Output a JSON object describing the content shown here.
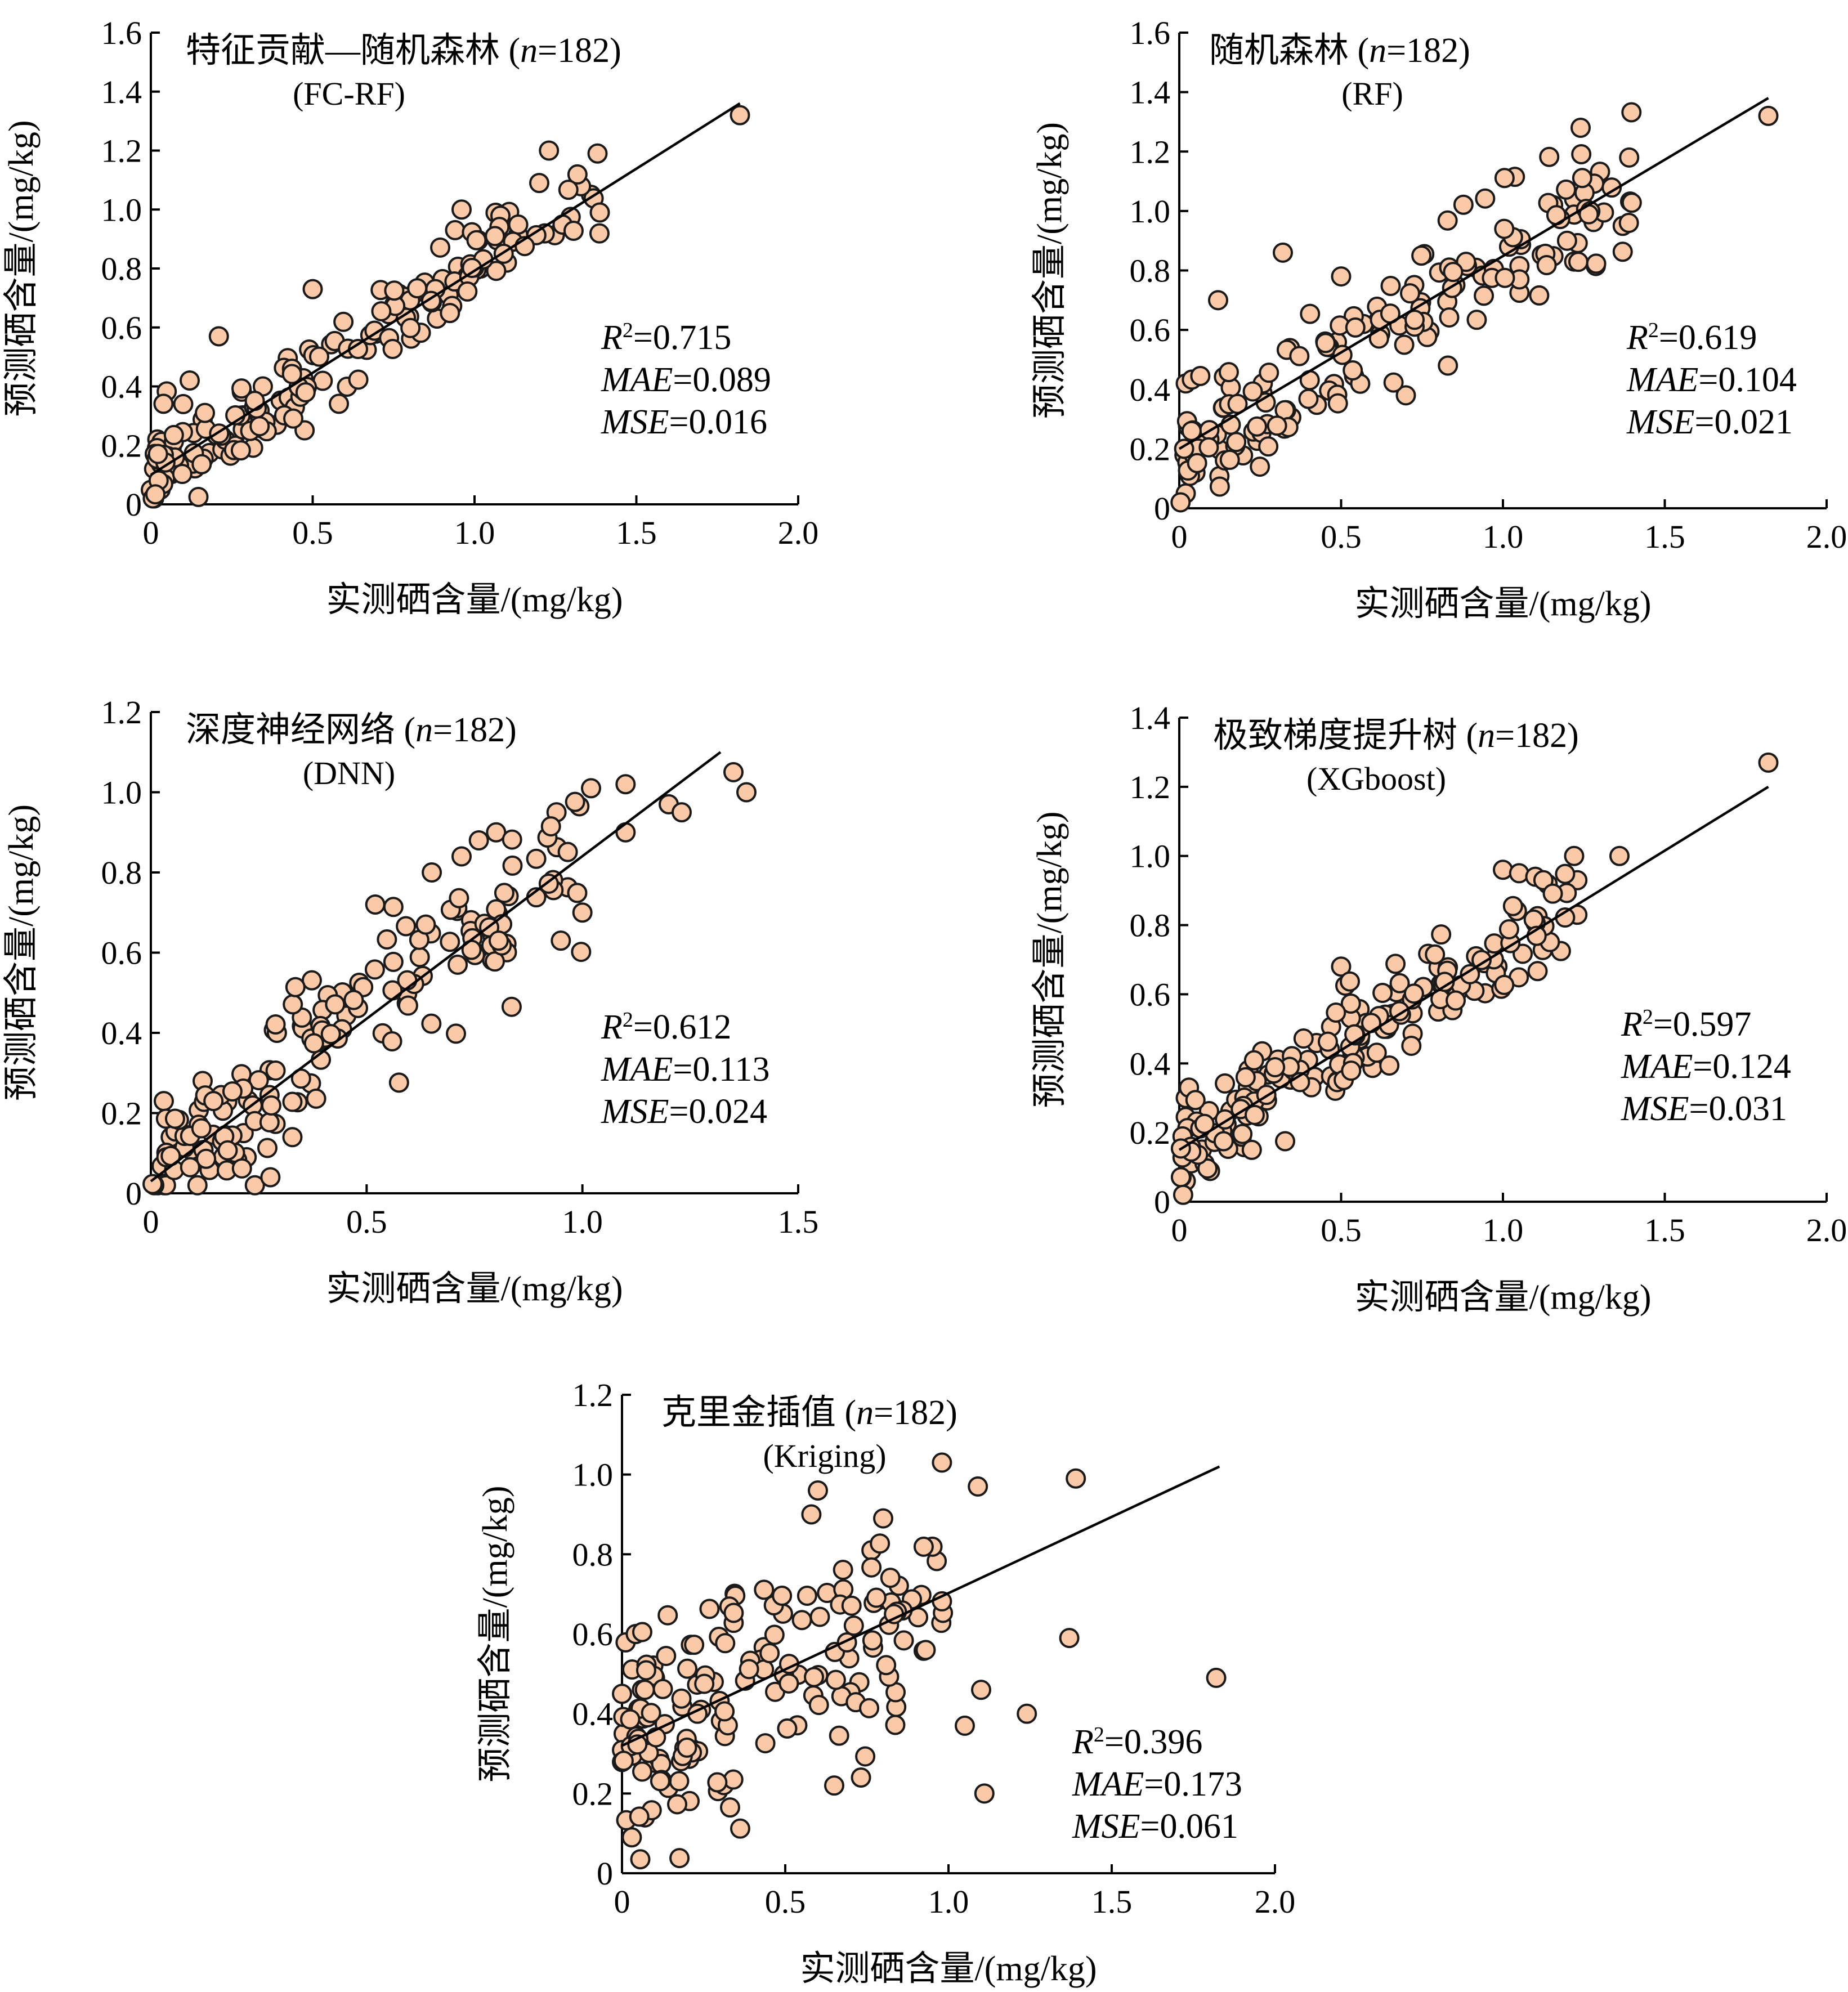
{
  "figure": {
    "marker_fill": "#F9C9A8",
    "marker_stroke": "#1a1a1a"
  },
  "chart_data": [
    {
      "type": "scatter",
      "title": "特征贡献—随机森林",
      "n_label": "n",
      "n_value": "=182)",
      "subtitle": "(FC-RF)",
      "xlabel": "实测硒含量/(mg/kg)",
      "ylabel": "预测硒含量/(mg/kg)",
      "xlim": [
        0,
        2.0
      ],
      "ylim": [
        0,
        1.6
      ],
      "xticks": [
        "0",
        "0.5",
        "1.0",
        "1.5",
        "2.0"
      ],
      "yticks": [
        "0",
        "0.2",
        "0.4",
        "0.6",
        "0.8",
        "1.0",
        "1.2",
        "1.4",
        "1.6"
      ],
      "stats": {
        "r2_label": "R",
        "r2_value": "=0.715",
        "mae_label": "MAE",
        "mae_value": "=0.089",
        "mse_label": "MSE",
        "mse_value": "=0.016"
      },
      "fit_line": {
        "x": [
          0,
          1.82
        ],
        "y": [
          0.1,
          1.36
        ]
      },
      "anchor_points": [
        [
          0.02,
          0.22
        ],
        [
          0.01,
          0.12
        ],
        [
          0.03,
          0.05
        ],
        [
          0.1,
          0.34
        ],
        [
          0.12,
          0.42
        ],
        [
          0.21,
          0.57
        ],
        [
          0.5,
          0.73
        ],
        [
          0.94,
          0.93
        ],
        [
          0.96,
          1.0
        ],
        [
          1.2,
          1.09
        ],
        [
          1.23,
          1.2
        ],
        [
          1.38,
          1.19
        ],
        [
          1.36,
          1.05
        ],
        [
          1.82,
          1.32
        ],
        [
          1.1,
          0.82
        ],
        [
          0.92,
          0.71
        ]
      ],
      "points": {
        "count": 182,
        "x_range": [
          0,
          1.4
        ],
        "noise": 0.07,
        "seed": 11
      }
    },
    {
      "type": "scatter",
      "title": "随机森林",
      "n_label": "n",
      "n_value": "=182)",
      "subtitle": "(RF)",
      "xlabel": "实测硒含量/(mg/kg)",
      "ylabel": "预测硒含量/(mg/kg)",
      "xlim": [
        0,
        2.0
      ],
      "ylim": [
        0,
        1.6
      ],
      "xticks": [
        "0",
        "0.5",
        "1.0",
        "1.5",
        "2.0"
      ],
      "yticks": [
        "0",
        "0.2",
        "0.4",
        "0.6",
        "0.8",
        "1.0",
        "1.2",
        "1.4",
        "1.6"
      ],
      "stats": {
        "r2_label": "R",
        "r2_value": "=0.619",
        "mae_label": "MAE",
        "mae_value": "=0.104",
        "mse_label": "MSE",
        "mse_value": "=0.021"
      },
      "fit_line": {
        "x": [
          0,
          1.82
        ],
        "y": [
          0.2,
          1.38
        ]
      },
      "anchor_points": [
        [
          0.02,
          0.42
        ],
        [
          0.12,
          0.7
        ],
        [
          0.32,
          0.86
        ],
        [
          0.5,
          0.78
        ],
        [
          0.7,
          0.38
        ],
        [
          0.83,
          0.48
        ],
        [
          1.22,
          0.83
        ],
        [
          1.22,
          1.04
        ],
        [
          1.24,
          1.28
        ],
        [
          1.37,
          0.95
        ],
        [
          1.39,
          1.18
        ],
        [
          1.82,
          1.32
        ],
        [
          0.02,
          0.05
        ],
        [
          0.05,
          0.12
        ]
      ],
      "points": {
        "count": 182,
        "x_range": [
          0,
          1.4
        ],
        "noise": 0.1,
        "seed": 23
      }
    },
    {
      "type": "scatter",
      "title": "深度神经网络",
      "n_label": "n",
      "n_value": "=182)",
      "subtitle": "(DNN)",
      "xlabel": "实测硒含量/(mg/kg)",
      "ylabel": "预测硒含量/(mg/kg)",
      "xlim": [
        0,
        1.5
      ],
      "ylim": [
        0,
        1.2
      ],
      "xticks": [
        "0",
        "0.5",
        "1.0",
        "1.5"
      ],
      "yticks": [
        "0",
        "0.2",
        "0.4",
        "0.6",
        "0.8",
        "1.0",
        "1.2"
      ],
      "stats": {
        "r2_label": "R",
        "r2_value": "=0.612",
        "mae_label": "MAE",
        "mae_value": "=0.113",
        "mse_label": "MSE",
        "mse_value": "=0.024"
      },
      "fit_line": {
        "x": [
          0,
          1.32
        ],
        "y": [
          0.03,
          1.1
        ]
      },
      "anchor_points": [
        [
          0.03,
          0.23
        ],
        [
          0.12,
          0.28
        ],
        [
          0.52,
          0.72
        ],
        [
          0.72,
          0.84
        ],
        [
          0.76,
          0.88
        ],
        [
          0.8,
          0.9
        ],
        [
          0.94,
          0.95
        ],
        [
          1.02,
          1.01
        ],
        [
          1.1,
          1.02
        ],
        [
          1.2,
          0.97
        ],
        [
          1.23,
          0.95
        ],
        [
          1.35,
          1.05
        ],
        [
          1.38,
          1.0
        ],
        [
          1.1,
          0.9
        ],
        [
          0.95,
          0.63
        ],
        [
          1.0,
          0.7
        ]
      ],
      "points": {
        "count": 182,
        "x_range": [
          0,
          1.0
        ],
        "noise": 0.1,
        "seed": 37
      }
    },
    {
      "type": "scatter",
      "title": "极致梯度提升树",
      "n_label": "n",
      "n_value": "=182)",
      "subtitle": "(XGboost)",
      "xlabel": "实测硒含量/(mg/kg)",
      "ylabel": "预测硒含量/(mg/kg)",
      "xlim": [
        0,
        2.0
      ],
      "ylim": [
        0,
        1.4
      ],
      "xticks": [
        "0",
        "0.5",
        "1.0",
        "1.5",
        "2.0"
      ],
      "yticks": [
        "0",
        "0.2",
        "0.4",
        "0.6",
        "0.8",
        "1.0",
        "1.2",
        "1.4"
      ],
      "stats": {
        "r2_label": "R",
        "r2_value": "=0.597",
        "mae_label": "MAE",
        "mae_value": "=0.124",
        "mse_label": "MSE",
        "mse_value": "=0.031"
      },
      "fit_line": {
        "x": [
          0,
          1.82
        ],
        "y": [
          0.15,
          1.2
        ]
      },
      "anchor_points": [
        [
          0.02,
          0.3
        ],
        [
          0.03,
          0.33
        ],
        [
          0.02,
          0.06
        ],
        [
          0.5,
          0.68
        ],
        [
          1.0,
          0.96
        ],
        [
          1.05,
          0.95
        ],
        [
          1.1,
          0.94
        ],
        [
          1.22,
          1.0
        ],
        [
          1.23,
          0.83
        ],
        [
          1.23,
          0.93
        ],
        [
          1.36,
          1.0
        ],
        [
          1.82,
          1.27
        ],
        [
          0.8,
          0.55
        ]
      ],
      "points": {
        "count": 182,
        "x_range": [
          0,
          1.2
        ],
        "noise": 0.07,
        "seed": 41
      }
    },
    {
      "type": "scatter",
      "title": "克里金插值",
      "n_label": "n",
      "n_value": "=182)",
      "subtitle": "(Kriging)",
      "xlabel": "实测硒含量/(mg/kg)",
      "ylabel": "预测硒含量/(mg/kg)",
      "xlim": [
        0,
        2.0
      ],
      "ylim": [
        0,
        1.2
      ],
      "xticks": [
        "0",
        "0.5",
        "1.0",
        "1.5",
        "2.0"
      ],
      "yticks": [
        "0",
        "0.2",
        "0.4",
        "0.6",
        "0.8",
        "1.0",
        "1.2"
      ],
      "stats": {
        "r2_label": "R",
        "r2_value": "=0.396",
        "mae_label": "MAE",
        "mae_value": "=0.173",
        "mse_label": "MSE",
        "mse_value": "=0.061"
      },
      "fit_line": {
        "x": [
          0,
          1.83
        ],
        "y": [
          0.32,
          1.02
        ]
      },
      "anchor_points": [
        [
          0.98,
          1.03
        ],
        [
          1.09,
          0.97
        ],
        [
          1.39,
          0.99
        ],
        [
          1.82,
          0.49
        ],
        [
          1.37,
          0.59
        ],
        [
          1.11,
          0.2
        ],
        [
          1.05,
          0.37
        ],
        [
          1.24,
          0.4
        ],
        [
          1.1,
          0.46
        ],
        [
          0.6,
          0.96
        ],
        [
          0.58,
          0.9
        ],
        [
          0.8,
          0.89
        ],
        [
          0.65,
          0.22
        ],
        [
          0.03,
          0.09
        ],
        [
          0.07,
          0.14
        ]
      ],
      "points": {
        "count": 182,
        "x_range": [
          0,
          1.0
        ],
        "noise": 0.14,
        "seed": 59
      }
    }
  ]
}
